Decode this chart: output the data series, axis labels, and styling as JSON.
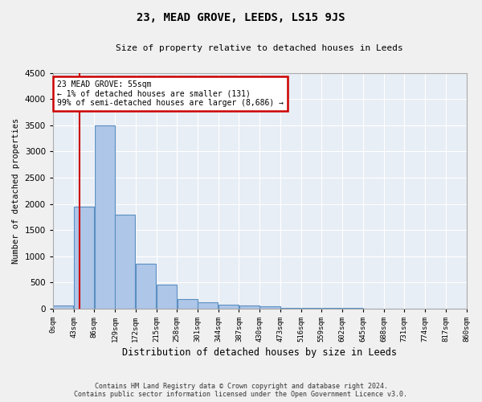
{
  "title": "23, MEAD GROVE, LEEDS, LS15 9JS",
  "subtitle": "Size of property relative to detached houses in Leeds",
  "xlabel": "Distribution of detached houses by size in Leeds",
  "ylabel": "Number of detached properties",
  "annotation_text": "23 MEAD GROVE: 55sqm\n← 1% of detached houses are smaller (131)\n99% of semi-detached houses are larger (8,686) →",
  "property_size": 55,
  "bin_edges": [
    0,
    43,
    86,
    129,
    172,
    215,
    258,
    301,
    344,
    387,
    430,
    473,
    516,
    559,
    602,
    645,
    688,
    731,
    774,
    817,
    860
  ],
  "bar_heights": [
    60,
    1950,
    3500,
    1800,
    850,
    450,
    185,
    120,
    75,
    55,
    35,
    18,
    10,
    8,
    5,
    4,
    3,
    2,
    1,
    1
  ],
  "bar_color": "#aec6e8",
  "bar_edge_color": "#5a8fc2",
  "red_line_color": "#cc0000",
  "annotation_box_color": "#cc0000",
  "ylim": [
    0,
    4500
  ],
  "yticks": [
    0,
    500,
    1000,
    1500,
    2000,
    2500,
    3000,
    3500,
    4000,
    4500
  ],
  "background_color": "#e8eef5",
  "grid_color": "#ffffff",
  "fig_background": "#f0f0f0",
  "footer_text": "Contains HM Land Registry data © Crown copyright and database right 2024.\nContains public sector information licensed under the Open Government Licence v3.0."
}
